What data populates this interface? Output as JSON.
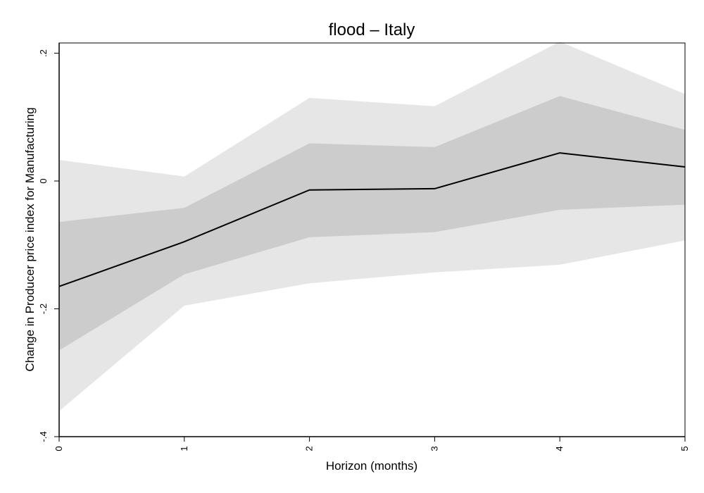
{
  "chart_data": {
    "type": "area",
    "title": "flood – Italy",
    "xlabel": "Horizon (months)",
    "ylabel": "Change in Producer price index for Manufacturing",
    "xlim": [
      0,
      5
    ],
    "ylim": [
      -0.4,
      0.2
    ],
    "x_ticks": [
      0,
      1,
      2,
      3,
      4,
      5
    ],
    "x_tick_labels": [
      "0",
      "1",
      "2",
      "3",
      "4",
      "5"
    ],
    "y_ticks": [
      -0.4,
      -0.2,
      0,
      0.2
    ],
    "y_tick_labels": [
      "-.4",
      "-.2",
      "0",
      ".2"
    ],
    "grid": false,
    "x": [
      0,
      1,
      2,
      3,
      4,
      5
    ],
    "series": [
      {
        "values": [
          -0.165,
          -0.095,
          -0.014,
          -0.012,
          0.044,
          0.022
        ]
      }
    ],
    "bands": [
      {
        "lower": [
          -0.36,
          -0.195,
          -0.16,
          -0.143,
          -0.131,
          -0.093
        ],
        "upper": [
          0.033,
          0.007,
          0.13,
          0.117,
          0.218,
          0.136
        ],
        "color": "#e6e6e6"
      },
      {
        "lower": [
          -0.265,
          -0.146,
          -0.088,
          -0.08,
          -0.045,
          -0.037
        ],
        "upper": [
          -0.064,
          -0.042,
          0.059,
          0.053,
          0.133,
          0.08
        ],
        "color": "#cccccc"
      }
    ],
    "line_color": "#000000"
  }
}
